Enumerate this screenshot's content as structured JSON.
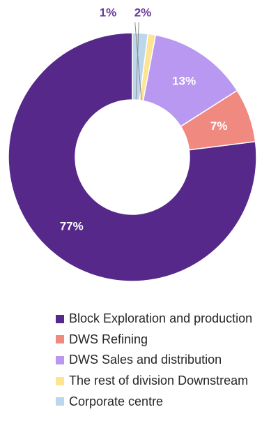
{
  "chart_data": {
    "type": "pie",
    "variant": "donut",
    "title": "",
    "legend_position": "bottom",
    "series": [
      {
        "name": "Block Exploration and production",
        "value": 77,
        "label": "77%",
        "color": "#55288a",
        "label_color": "#ffffff"
      },
      {
        "name": "DWS Refining",
        "value": 7,
        "label": "7%",
        "color": "#f08a80",
        "label_color": "#ffffff"
      },
      {
        "name": "DWS Sales and distribution",
        "value": 13,
        "label": "13%",
        "color": "#b898f0",
        "label_color": "#ffffff"
      },
      {
        "name": "The rest of division Downstream",
        "value": 1,
        "label": "1%",
        "color": "#fde493",
        "label_color": "#6a3a9a"
      },
      {
        "name": "Corporate centre",
        "value": 2,
        "label": "2%",
        "color": "#bcd6ec",
        "label_color": "#6a3a9a"
      }
    ]
  }
}
